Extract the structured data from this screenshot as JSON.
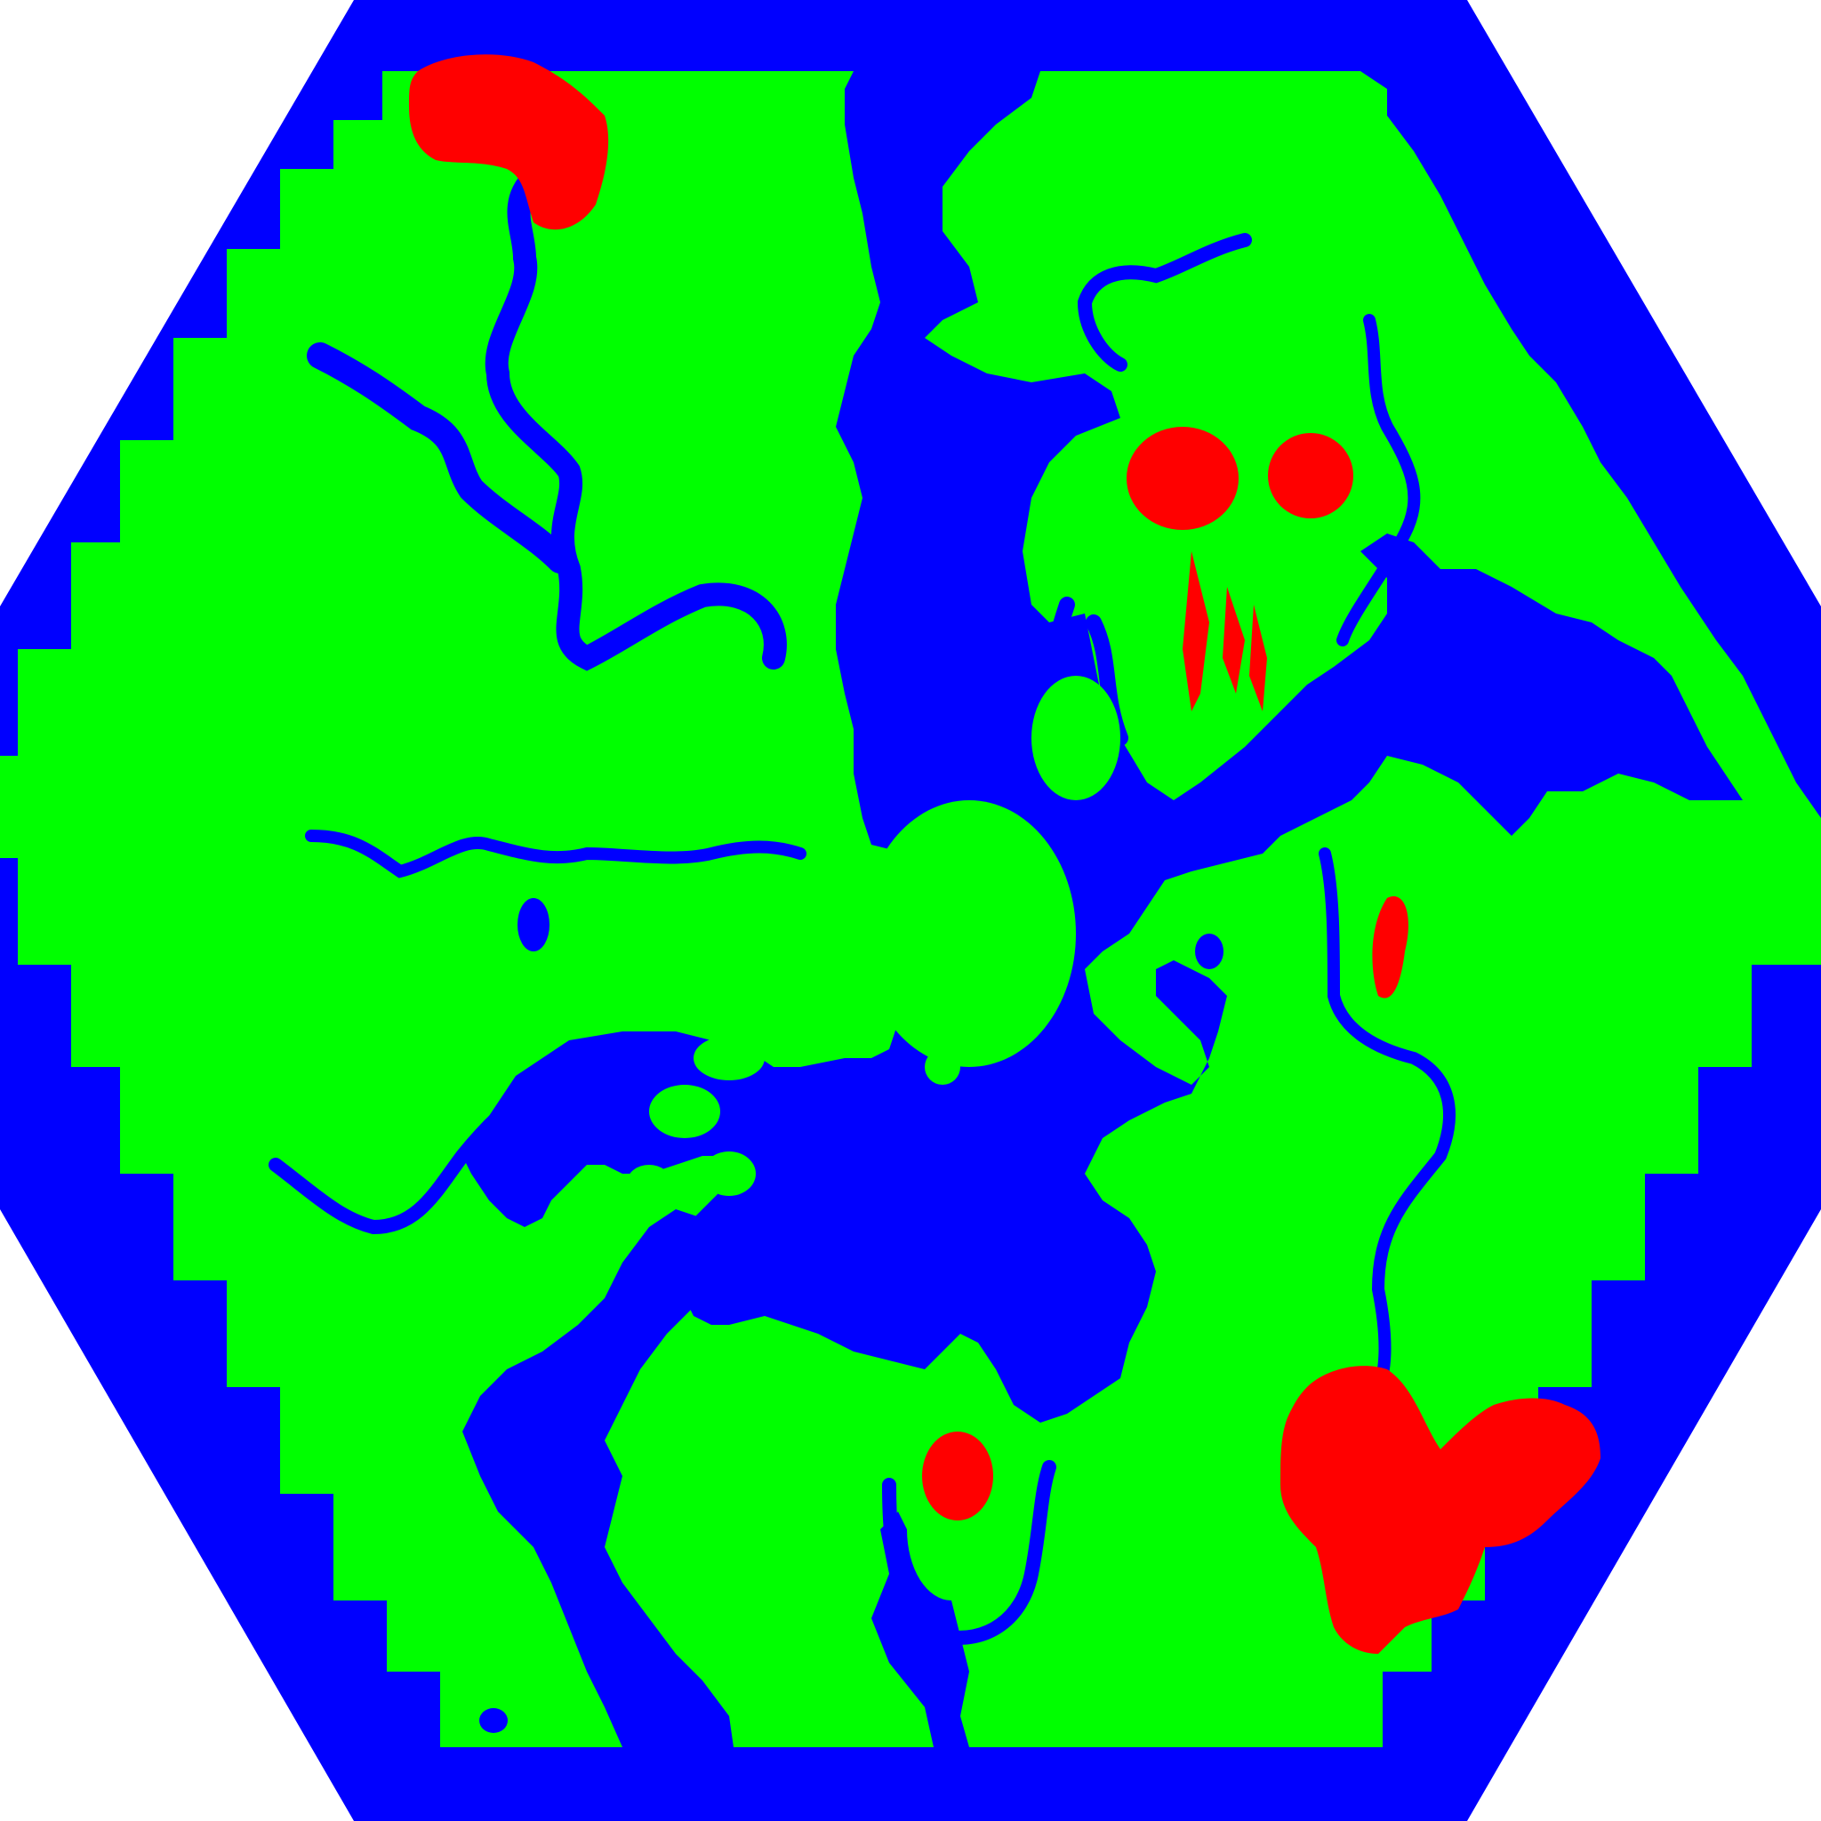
{
  "map": {
    "colors": {
      "background": "#ffffff",
      "water": "#0000ff",
      "land": "#00ff00",
      "feature": "#ff0000"
    },
    "legend_classes": [
      "water",
      "land",
      "feature"
    ]
  }
}
